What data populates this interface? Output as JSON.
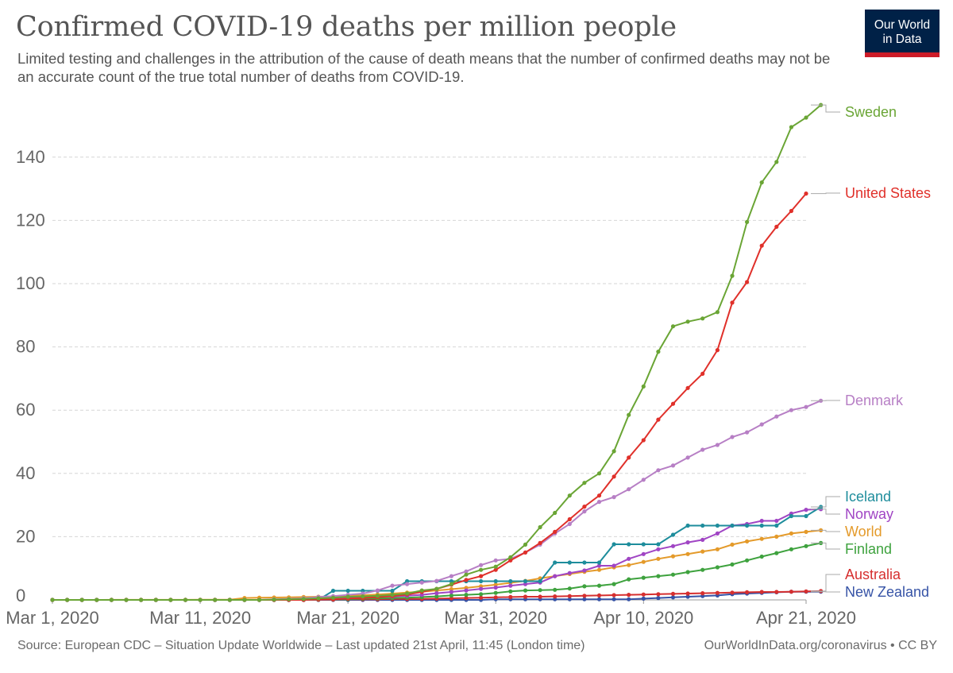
{
  "header": {
    "title": "Confirmed COVID-19 deaths per million people",
    "subtitle": "Limited testing and challenges in the attribution of the cause of death means that the number of confirmed deaths may not be an accurate count of the true total number of deaths from COVID-19."
  },
  "logo": {
    "line1": "Our World",
    "line2": "in Data",
    "bg_color": "#002147",
    "stripe_color": "#cd1b28"
  },
  "footer": {
    "source": "Source: European CDC – Situation Update Worldwide – Last updated 21st April, 11:45 (London time)",
    "credit": "OurWorldInData.org/coronavirus • CC BY"
  },
  "chart_data": {
    "type": "line",
    "title": "Confirmed COVID-19 deaths per million people",
    "x_tick_labels": [
      "Mar 1, 2020",
      "Mar 11, 2020",
      "Mar 21, 2020",
      "Mar 31, 2020",
      "Apr 10, 2020",
      "Apr 21, 2020"
    ],
    "x_tick_days": [
      0,
      10,
      20,
      30,
      40,
      51
    ],
    "y_ticks": [
      0,
      20,
      40,
      60,
      80,
      100,
      120,
      140
    ],
    "ylim": [
      0,
      158
    ],
    "grid": "horizontal dashed",
    "legend": "labels at line ends (right)",
    "series": [
      {
        "name": "Sweden",
        "color": "#6aa535",
        "values": [
          0,
          0,
          0,
          0,
          0,
          0,
          0,
          0,
          0,
          0,
          0,
          0,
          0,
          0,
          0,
          0.1,
          0.2,
          0.3,
          0.5,
          0.7,
          1.0,
          1.1,
          1.3,
          1.6,
          2,
          3,
          3.5,
          5,
          8,
          9.5,
          10.5,
          13.5,
          17.5,
          23,
          27.5,
          33,
          37,
          40,
          47,
          58.5,
          67.5,
          78.5,
          86.5,
          88,
          89,
          91,
          102.5,
          119.5,
          132,
          138.5,
          149.5,
          152.5,
          156.5
        ]
      },
      {
        "name": "United States",
        "color": "#e0302a",
        "values": [
          0,
          0,
          0,
          0,
          0,
          0,
          0,
          0,
          0,
          0,
          0,
          0,
          0,
          0,
          0,
          0,
          0,
          0,
          0.1,
          0.2,
          0.4,
          0.6,
          0.9,
          1.2,
          1.7,
          2.5,
          3.5,
          4.8,
          6.3,
          7.5,
          9.5,
          12.5,
          15,
          18,
          21.5,
          25.5,
          29.5,
          33,
          39,
          45,
          50.5,
          57,
          62,
          67,
          71.5,
          79,
          94,
          100.5,
          112,
          118,
          123,
          128.5
        ]
      },
      {
        "name": "Denmark",
        "color": "#b77fc5",
        "values": [
          0,
          0,
          0,
          0,
          0,
          0,
          0,
          0,
          0,
          0,
          0,
          0,
          0,
          0,
          0,
          0.2,
          0.3,
          0.5,
          0.9,
          1.2,
          1.6,
          2,
          3,
          4.5,
          5,
          5.5,
          6,
          7.5,
          9,
          11,
          12.5,
          13,
          15,
          17.5,
          21,
          24,
          28,
          31,
          32.5,
          35,
          38,
          41,
          42.5,
          45,
          47.5,
          49,
          51.5,
          53,
          55.5,
          58,
          60,
          61,
          63
        ]
      },
      {
        "name": "Iceland",
        "color": "#1e8d9c",
        "values": [
          0,
          0,
          0,
          0,
          0,
          0,
          0,
          0,
          0,
          0,
          0,
          0,
          0,
          0,
          0,
          0,
          0,
          0,
          0,
          2.9,
          2.9,
          2.9,
          2.9,
          2.9,
          5.9,
          5.9,
          5.9,
          5.9,
          5.9,
          5.9,
          5.9,
          5.9,
          5.9,
          5.9,
          11.8,
          11.8,
          11.8,
          11.8,
          17.6,
          17.6,
          17.6,
          17.6,
          20.6,
          23.5,
          23.5,
          23.5,
          23.5,
          23.5,
          23.5,
          23.5,
          26.5,
          26.5,
          29.4
        ]
      },
      {
        "name": "Norway",
        "color": "#a045c4",
        "values": [
          0,
          0,
          0,
          0,
          0,
          0,
          0,
          0,
          0,
          0,
          0,
          0,
          0,
          0,
          0,
          0,
          0,
          0,
          0.2,
          0.4,
          0.6,
          0.8,
          1.0,
          1.1,
          1.3,
          1.6,
          2.1,
          2.5,
          3,
          3.5,
          3.9,
          4.5,
          5,
          5.5,
          7.5,
          8.5,
          9.3,
          10.8,
          10.8,
          13,
          14.5,
          16,
          17,
          18.2,
          19,
          21,
          23.5,
          24,
          25,
          25,
          27.3,
          28.5,
          28.7
        ]
      },
      {
        "name": "World",
        "color": "#e49a2a",
        "values": [
          0.01,
          0.01,
          0.01,
          0.01,
          0.02,
          0.02,
          0.02,
          0.03,
          0.03,
          0.03,
          0.04,
          0.04,
          0.05,
          0.6,
          0.7,
          0.75,
          0.8,
          0.9,
          1.0,
          1.1,
          1.3,
          1.5,
          1.7,
          2.0,
          2.3,
          2.6,
          3.0,
          3.4,
          3.8,
          4.3,
          4.8,
          5.4,
          6,
          6.8,
          7.5,
          8.2,
          8.9,
          9.5,
          10.3,
          11,
          12,
          13,
          13.8,
          14.5,
          15.3,
          16,
          17.5,
          18.5,
          19.3,
          20,
          21,
          21.5,
          22
        ]
      },
      {
        "name": "Finland",
        "color": "#3ea23e",
        "values": [
          0,
          0,
          0,
          0,
          0,
          0,
          0,
          0,
          0,
          0,
          0,
          0,
          0,
          0,
          0,
          0,
          0,
          0,
          0.1,
          0.2,
          0.2,
          0.4,
          0.5,
          0.6,
          0.7,
          0.9,
          1.1,
          1.4,
          1.6,
          1.8,
          2.2,
          2.7,
          3.0,
          3.1,
          3.2,
          3.6,
          4.3,
          4.5,
          5,
          6.5,
          7,
          7.5,
          8,
          8.8,
          9.5,
          10.3,
          11.2,
          12.5,
          13.7,
          14.8,
          16,
          17,
          18
        ]
      },
      {
        "name": "Australia",
        "color": "#d62f2f",
        "values": [
          0,
          0,
          0,
          0,
          0,
          0,
          0,
          0,
          0,
          0,
          0,
          0,
          0,
          0,
          0,
          0,
          0,
          0,
          0.1,
          0.1,
          0.2,
          0.2,
          0.2,
          0.3,
          0.3,
          0.3,
          0.4,
          0.5,
          0.6,
          0.7,
          0.8,
          0.9,
          1.0,
          1.0,
          1.1,
          1.2,
          1.3,
          1.4,
          1.5,
          1.6,
          1.7,
          1.8,
          1.9,
          2.0,
          2.1,
          2.2,
          2.3,
          2.4,
          2.5,
          2.5,
          2.6,
          2.7,
          2.8
        ]
      },
      {
        "name": "New Zealand",
        "color": "#3653a6",
        "values": [
          0,
          0,
          0,
          0,
          0,
          0,
          0,
          0,
          0,
          0,
          0,
          0,
          0,
          0,
          0,
          0,
          0,
          0,
          0,
          0,
          0,
          0,
          0,
          0,
          0,
          0,
          0,
          0,
          0,
          0,
          0.2,
          0.2,
          0.2,
          0.2,
          0.2,
          0.2,
          0.2,
          0.2,
          0.2,
          0.2,
          0.4,
          0.6,
          0.8,
          1.0,
          1.2,
          1.4,
          1.8,
          2.0,
          2.2,
          2.4,
          2.6,
          2.6,
          2.6
        ]
      }
    ]
  }
}
